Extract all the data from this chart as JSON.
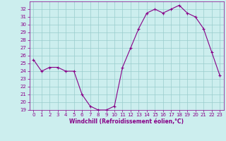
{
  "x": [
    0,
    1,
    2,
    3,
    4,
    5,
    6,
    7,
    8,
    9,
    10,
    11,
    12,
    13,
    14,
    15,
    16,
    17,
    18,
    19,
    20,
    21,
    22,
    23
  ],
  "y": [
    25.5,
    24.0,
    24.5,
    24.5,
    24.0,
    24.0,
    21.0,
    19.5,
    19.0,
    19.0,
    19.5,
    24.5,
    27.0,
    29.5,
    31.5,
    32.0,
    31.5,
    32.0,
    32.5,
    31.5,
    31.0,
    29.5,
    26.5,
    23.5
  ],
  "line_color": "#880088",
  "marker": "+",
  "marker_color": "#880088",
  "bg_color": "#cceeee",
  "grid_color": "#99cccc",
  "xlabel": "Windchill (Refroidissement éolien,°C)",
  "xlabel_color": "#880088",
  "tick_color": "#880088",
  "spine_color": "#880088",
  "ylim": [
    19,
    33
  ],
  "xlim": [
    -0.5,
    23.5
  ],
  "yticks": [
    19,
    20,
    21,
    22,
    23,
    24,
    25,
    26,
    27,
    28,
    29,
    30,
    31,
    32
  ],
  "xticks": [
    0,
    1,
    2,
    3,
    4,
    5,
    6,
    7,
    8,
    9,
    10,
    11,
    12,
    13,
    14,
    15,
    16,
    17,
    18,
    19,
    20,
    21,
    22,
    23
  ],
  "figsize": [
    3.2,
    2.0
  ],
  "dpi": 100,
  "tick_fontsize": 5.0,
  "xlabel_fontsize": 5.5,
  "linewidth": 0.8,
  "markersize": 3.5
}
